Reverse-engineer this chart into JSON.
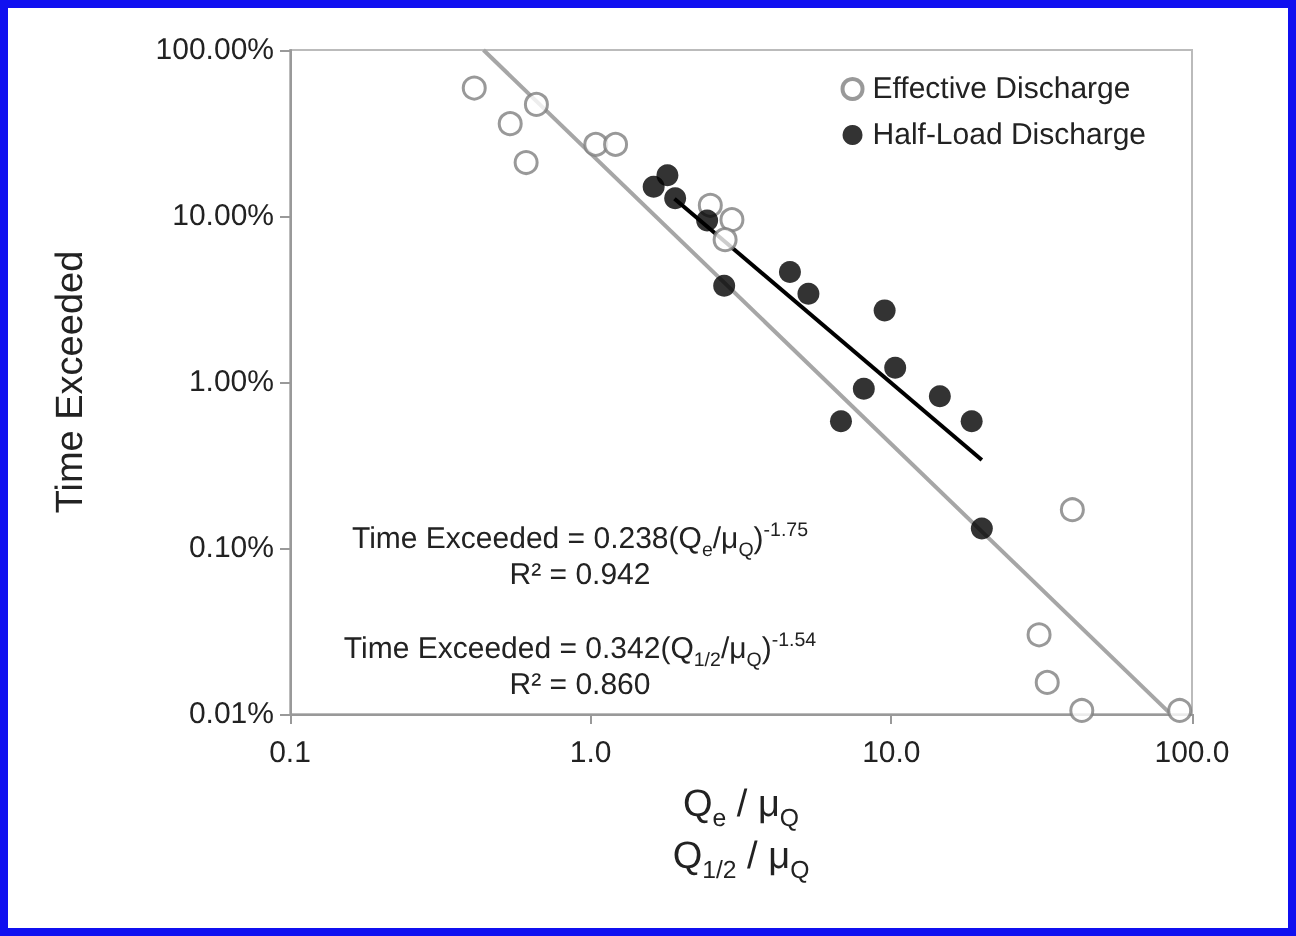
{
  "chart_data": {
    "type": "scatter",
    "xlabel": "Q$_{e}$ / μ$_{Q}$\nQ$_{1/2}$ / μ$_{Q}$",
    "ylabel": "Time Exceeded",
    "series": [
      {
        "name": "Effective Discharge",
        "color": "#7f7f7f",
        "x": [
          0.41,
          0.66,
          0.54,
          0.61,
          1.04,
          1.21,
          2.5,
          2.95,
          2.8,
          40,
          31,
          33,
          43,
          91
        ],
        "values": [
          59,
          47,
          36,
          21,
          27,
          27,
          11.6,
          9.5,
          7.2,
          0.17,
          0.03,
          0.0155,
          0.0105,
          0.0105
        ]
      },
      {
        "name": "Half-Load Discharge",
        "color": "#000000",
        "x": [
          1.62,
          1.8,
          1.91,
          2.44,
          2.78,
          4.6,
          5.3,
          9.5,
          10.3,
          8.1,
          14.5,
          6.8,
          18.5,
          20
        ],
        "values": [
          15,
          17.6,
          12.8,
          9.4,
          3.8,
          4.6,
          3.4,
          2.7,
          1.22,
          0.91,
          0.82,
          0.58,
          0.58,
          0.131
        ]
      },
      {
        "type": "line",
        "marker": "none",
        "color": "#a6a6a6",
        "x": [
          0.44,
          84
        ],
        "values": [
          100,
          0.0102
        ]
      },
      {
        "type": "line",
        "marker": "none",
        "color": "#000000",
        "x": [
          1.9,
          20
        ],
        "values": [
          12.7,
          0.339
        ]
      }
    ],
    "annotations": [
      "Time Exceeded = 0.238(Q$_{e}$/μ$_{Q}$)$^{-1.75}$",
      "R² = 0.942",
      "Time Exceeded = 0.342(Q$_{1/2}$/μ$_{Q}$)$^{-1.54}$",
      "R² = 0.860"
    ],
    "xlim": [
      0.1,
      100
    ],
    "xticks": [
      {
        "value": 0.1,
        "label": "0.1"
      },
      {
        "value": 1,
        "label": "1.0"
      },
      {
        "value": 10,
        "label": "10.0"
      },
      {
        "value": 100,
        "label": "100.0"
      }
    ],
    "ylim": [
      0.01,
      100
    ],
    "yticks": [
      {
        "value": 0.01,
        "label": "0.01%"
      },
      {
        "value": 0.1,
        "label": "0.10%"
      },
      {
        "value": 1,
        "label": "1.00%"
      },
      {
        "value": 10,
        "label": "10.00%"
      },
      {
        "value": 100,
        "label": "100.00%"
      }
    ],
    "log": "xy",
    "grid": false,
    "legend": "top right",
    "marker": "circle",
    "line_style": "solid"
  }
}
